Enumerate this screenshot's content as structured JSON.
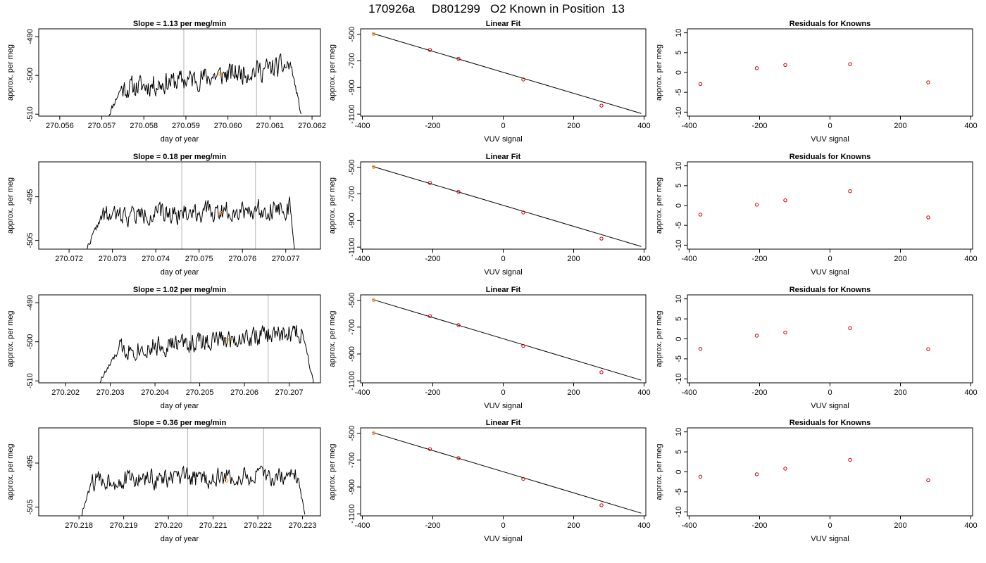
{
  "figure": {
    "title": "170926a     D801299   O2 Known in Position  13"
  },
  "colors": {
    "trace": "#000000",
    "marker_vline": "#bfbfbf",
    "highlight_point": "#ff8c00",
    "fit_point": "#cc0000",
    "frame": "#000000"
  },
  "chart_data": [
    {
      "type": "line",
      "title": "Slope =  1.13  per meg/min",
      "xlabel": "day of year",
      "ylabel": "approx. per meg",
      "x_ticks": [
        "270.056",
        "270.057",
        "270.058",
        "270.059",
        "270.060",
        "270.061",
        "270.062"
      ],
      "y_ticks": [
        "-510",
        "-500",
        "-490"
      ],
      "xlim": [
        270.0555,
        270.0622
      ],
      "ylim": [
        -510.5,
        -488
      ],
      "trace_start": 270.05715,
      "trace_end": 270.06175,
      "vlines": [
        270.05895,
        270.06068
      ],
      "highlight_point": {
        "x": 270.05982,
        "y": -499.6
      },
      "seed": 11,
      "start_level": -510.5,
      "plateau_start": -503.5,
      "plateau_end": -497.5,
      "end_level": -510.5,
      "ramp_end": 270.05745,
      "drop_start": 270.0615,
      "noise": 3.2
    },
    {
      "type": "scatter",
      "title": "Linear Fit",
      "xlabel": "VUV signal",
      "ylabel": "approx. per meg",
      "x_ticks": [
        "-400",
        "-200",
        "0",
        "200",
        "400"
      ],
      "y_ticks": [
        "-1100",
        "-900",
        "-700",
        "-500"
      ],
      "xlim": [
        -405,
        405
      ],
      "ylim": [
        -1115,
        -460
      ],
      "points": [
        {
          "x": -368,
          "y": -498
        },
        {
          "x": -208,
          "y": -618
        },
        {
          "x": -127,
          "y": -685
        },
        {
          "x": 57,
          "y": -840
        },
        {
          "x": 279,
          "y": -1036
        }
      ],
      "highlight_index": 0,
      "fit_line": [
        {
          "x": -370,
          "y": -495
        },
        {
          "x": 392,
          "y": -1095
        }
      ]
    },
    {
      "type": "scatter",
      "title": "Residuals for Knowns",
      "xlabel": "VUV signal",
      "ylabel": "approx. per meg",
      "x_ticks": [
        "-400",
        "-200",
        "0",
        "200",
        "400"
      ],
      "y_ticks": [
        "-10",
        "-5",
        "0",
        "5",
        "10"
      ],
      "xlim": [
        -405,
        405
      ],
      "ylim": [
        -11,
        11
      ],
      "points": [
        {
          "x": -368,
          "y": -2.9
        },
        {
          "x": -208,
          "y": 1.1
        },
        {
          "x": -127,
          "y": 1.9
        },
        {
          "x": 57,
          "y": 2.1
        },
        {
          "x": 279,
          "y": -2.5
        }
      ]
    },
    {
      "type": "line",
      "title": "Slope =  0.18  per meg/min",
      "xlabel": "day of year",
      "ylabel": "approx. per meg",
      "x_ticks": [
        "270.072",
        "270.073",
        "270.074",
        "270.075",
        "270.076",
        "270.077"
      ],
      "y_ticks": [
        "-505",
        "-495"
      ],
      "xlim": [
        270.0713,
        270.0778
      ],
      "ylim": [
        -507,
        -487
      ],
      "trace_start": 270.0724,
      "trace_end": 270.0772,
      "vlines": [
        270.0746,
        270.0763
      ],
      "highlight_point": {
        "x": 270.0755,
        "y": -498.7
      },
      "seed": 22,
      "start_level": -507,
      "plateau_start": -499.5,
      "plateau_end": -497.5,
      "end_level": -507,
      "ramp_end": 270.07275,
      "drop_start": 270.0771,
      "noise": 2.6
    },
    {
      "type": "scatter",
      "title": "Linear Fit",
      "xlabel": "VUV signal",
      "ylabel": "approx. per meg",
      "x_ticks": [
        "-400",
        "-200",
        "0",
        "200",
        "400"
      ],
      "y_ticks": [
        "-1100",
        "-900",
        "-700",
        "-500"
      ],
      "xlim": [
        -405,
        405
      ],
      "ylim": [
        -1115,
        -460
      ],
      "points": [
        {
          "x": -368,
          "y": -498
        },
        {
          "x": -208,
          "y": -618
        },
        {
          "x": -127,
          "y": -685
        },
        {
          "x": 57,
          "y": -840
        },
        {
          "x": 279,
          "y": -1036
        }
      ],
      "highlight_index": 0,
      "fit_line": [
        {
          "x": -370,
          "y": -495
        },
        {
          "x": 392,
          "y": -1095
        }
      ]
    },
    {
      "type": "scatter",
      "title": "Residuals for Knowns",
      "xlabel": "VUV signal",
      "ylabel": "approx. per meg",
      "x_ticks": [
        "-400",
        "-200",
        "0",
        "200",
        "400"
      ],
      "y_ticks": [
        "-10",
        "-5",
        "0",
        "5",
        "10"
      ],
      "xlim": [
        -405,
        405
      ],
      "ylim": [
        -11,
        11
      ],
      "points": [
        {
          "x": -368,
          "y": -2.3
        },
        {
          "x": -208,
          "y": 0.2
        },
        {
          "x": -127,
          "y": 1.3
        },
        {
          "x": 57,
          "y": 3.6
        },
        {
          "x": 279,
          "y": -3.0
        }
      ]
    },
    {
      "type": "line",
      "title": "Slope =  1.02  per meg/min",
      "xlabel": "day of year",
      "ylabel": "approx. per meg",
      "x_ticks": [
        "270.202",
        "270.203",
        "270.204",
        "270.205",
        "270.206",
        "270.207"
      ],
      "y_ticks": [
        "-510",
        "-500",
        "-490"
      ],
      "xlim": [
        270.2014,
        270.2077
      ],
      "ylim": [
        -510.5,
        -488
      ],
      "trace_start": 270.20275,
      "trace_end": 270.20755,
      "vlines": [
        270.2048,
        270.20653
      ],
      "highlight_point": {
        "x": 270.20562,
        "y": -499.4
      },
      "seed": 33,
      "start_level": -510.5,
      "plateau_start": -502,
      "plateau_end": -497.5,
      "end_level": -510.5,
      "ramp_end": 270.2032,
      "drop_start": 270.2073,
      "noise": 3.0
    },
    {
      "type": "scatter",
      "title": "Linear Fit",
      "xlabel": "VUV signal",
      "ylabel": "approx. per meg",
      "x_ticks": [
        "-400",
        "-200",
        "0",
        "200",
        "400"
      ],
      "y_ticks": [
        "-1100",
        "-900",
        "-700",
        "-500"
      ],
      "xlim": [
        -405,
        405
      ],
      "ylim": [
        -1115,
        -460
      ],
      "points": [
        {
          "x": -368,
          "y": -498
        },
        {
          "x": -208,
          "y": -618
        },
        {
          "x": -127,
          "y": -685
        },
        {
          "x": 57,
          "y": -840
        },
        {
          "x": 279,
          "y": -1036
        }
      ],
      "highlight_index": 0,
      "fit_line": [
        {
          "x": -370,
          "y": -495
        },
        {
          "x": 392,
          "y": -1095
        }
      ]
    },
    {
      "type": "scatter",
      "title": "Residuals for Knowns",
      "xlabel": "VUV signal",
      "ylabel": "approx. per meg",
      "x_ticks": [
        "-400",
        "-200",
        "0",
        "200",
        "400"
      ],
      "y_ticks": [
        "-10",
        "-5",
        "0",
        "5",
        "10"
      ],
      "xlim": [
        -405,
        405
      ],
      "ylim": [
        -11,
        11
      ],
      "points": [
        {
          "x": -368,
          "y": -2.5
        },
        {
          "x": -208,
          "y": 0.8
        },
        {
          "x": -127,
          "y": 1.6
        },
        {
          "x": 57,
          "y": 2.7
        },
        {
          "x": 279,
          "y": -2.6
        }
      ]
    },
    {
      "type": "line",
      "title": "Slope =  0.36  per meg/min",
      "xlabel": "day of year",
      "ylabel": "approx. per meg",
      "x_ticks": [
        "270.218",
        "270.219",
        "270.220",
        "270.221",
        "270.222",
        "270.223"
      ],
      "y_ticks": [
        "-505",
        "-495"
      ],
      "xlim": [
        270.2171,
        270.2234
      ],
      "ylim": [
        -507,
        -487
      ],
      "trace_start": 270.21805,
      "trace_end": 270.22305,
      "vlines": [
        270.22043,
        270.22213
      ],
      "highlight_point": {
        "x": 270.2213,
        "y": -499.0
      },
      "seed": 44,
      "start_level": -507,
      "plateau_start": -499,
      "plateau_end": -498,
      "end_level": -507,
      "ramp_end": 270.2183,
      "drop_start": 270.2229,
      "noise": 2.6
    },
    {
      "type": "scatter",
      "title": "Linear Fit",
      "xlabel": "VUV signal",
      "ylabel": "approx. per meg",
      "x_ticks": [
        "-400",
        "-200",
        "0",
        "200",
        "400"
      ],
      "y_ticks": [
        "-1100",
        "-900",
        "-700",
        "-500"
      ],
      "xlim": [
        -405,
        405
      ],
      "ylim": [
        -1115,
        -460
      ],
      "points": [
        {
          "x": -368,
          "y": -498
        },
        {
          "x": -208,
          "y": -618
        },
        {
          "x": -127,
          "y": -685
        },
        {
          "x": 57,
          "y": -840
        },
        {
          "x": 279,
          "y": -1036
        }
      ],
      "highlight_index": 0,
      "fit_line": [
        {
          "x": -370,
          "y": -495
        },
        {
          "x": 392,
          "y": -1095
        }
      ]
    },
    {
      "type": "scatter",
      "title": "Residuals for Knowns",
      "xlabel": "VUV signal",
      "ylabel": "approx. per meg",
      "x_ticks": [
        "-400",
        "-200",
        "0",
        "200",
        "400"
      ],
      "y_ticks": [
        "-10",
        "-5",
        "0",
        "5",
        "10"
      ],
      "xlim": [
        -405,
        405
      ],
      "ylim": [
        -11,
        11
      ],
      "points": [
        {
          "x": -368,
          "y": -1.2
        },
        {
          "x": -208,
          "y": -0.6
        },
        {
          "x": -127,
          "y": 0.8
        },
        {
          "x": 57,
          "y": 3.0
        },
        {
          "x": 279,
          "y": -2.1
        }
      ]
    }
  ]
}
